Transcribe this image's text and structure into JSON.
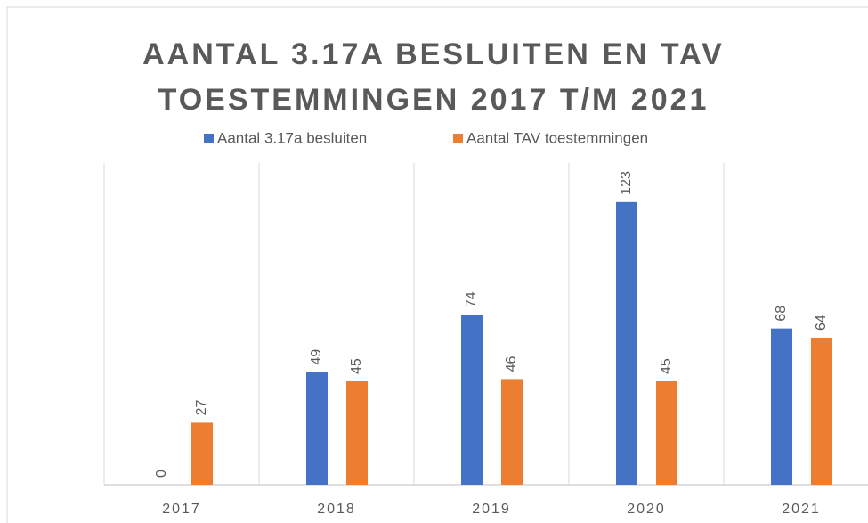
{
  "chart_data": {
    "type": "bar",
    "title": "AANTAL 3.17A BESLUITEN EN TAV TOESTEMMINGEN 2017 T/M 2021",
    "categories": [
      "2017",
      "2018",
      "2019",
      "2020",
      "2021"
    ],
    "series": [
      {
        "name": "Aantal 3.17a besluiten",
        "color": "#4472c4",
        "values": [
          0,
          49,
          74,
          123,
          68
        ]
      },
      {
        "name": "Aantal TAV toestemmingen",
        "color": "#ed7d31",
        "values": [
          27,
          45,
          46,
          45,
          64
        ]
      }
    ],
    "ylim": [
      0,
      140
    ],
    "legend": "top"
  }
}
